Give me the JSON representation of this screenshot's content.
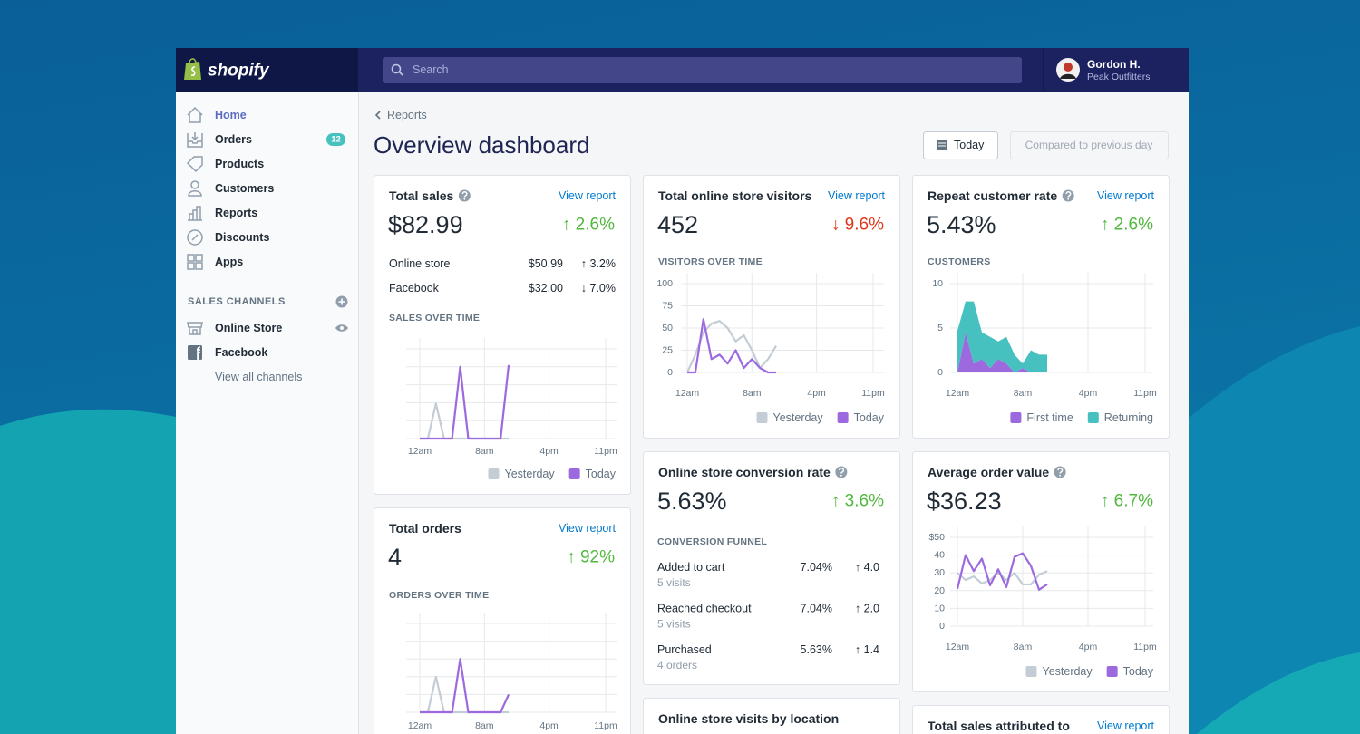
{
  "app": {
    "brand": "shopify",
    "search": "Search",
    "user": {
      "name": "Gordon H.",
      "store": "Peak Outfitters"
    }
  },
  "nav": {
    "items": [
      {
        "label": "Home"
      },
      {
        "label": "Orders",
        "badge": 12
      },
      {
        "label": "Products"
      },
      {
        "label": "Customers"
      },
      {
        "label": "Reports"
      },
      {
        "label": "Discounts"
      },
      {
        "label": "Apps"
      }
    ],
    "channels_heading": "SALES CHANNELS",
    "channels": [
      "Online Store",
      "Facebook"
    ],
    "channels_more": "View all channels"
  },
  "page": {
    "breadcrumb": "Reports",
    "title": "Overview dashboard",
    "date_button": "Today",
    "compare_button": "Compared to previous day"
  },
  "cards": {
    "total_sales": {
      "title": "Total sales",
      "link": "View report",
      "value": "$82.99",
      "change": "↑ 2.6%",
      "rows": [
        {
          "label": "Online store",
          "value": "$50.99",
          "change": "↑ 3.2%"
        },
        {
          "label": "Facebook",
          "value": "$32.00",
          "change": "↓ 7.0%"
        }
      ],
      "chart": {
        "type": "line",
        "heading": "SALES OVER TIME",
        "x": [
          0,
          1,
          2,
          3,
          4,
          5,
          6,
          7,
          8,
          9,
          10,
          11
        ],
        "xlim": [
          0,
          23
        ],
        "xticks": [
          {
            "value": 0,
            "label": "12am"
          },
          {
            "value": 8,
            "label": "8am"
          },
          {
            "value": 16,
            "label": "4pm"
          },
          {
            "value": 23,
            "label": "11pm"
          }
        ],
        "ylim": [
          0,
          100
        ],
        "grid": true,
        "series": [
          {
            "name": "Yesterday",
            "color": "#c4cdd5",
            "values": [
              0,
              0,
              39,
              0,
              0,
              0,
              0,
              0,
              0,
              0,
              0,
              0
            ]
          },
          {
            "name": "Today",
            "color": "#9c6ade",
            "values": [
              0,
              0,
              0,
              0,
              0,
              80,
              0,
              0,
              0,
              0,
              0,
              82
            ]
          }
        ]
      }
    },
    "visitors": {
      "title": "Total online store visitors",
      "link": "View report",
      "value": "452",
      "change": "↓ 9.6%",
      "chart": {
        "type": "line",
        "heading": "VISITORS OVER TIME",
        "x": [
          0,
          1,
          2,
          3,
          4,
          5,
          6,
          7,
          8,
          9,
          10,
          11
        ],
        "xlim": [
          0,
          23
        ],
        "xticks": [
          {
            "value": 0,
            "label": "12am"
          },
          {
            "value": 8,
            "label": "8am"
          },
          {
            "value": 16,
            "label": "4pm"
          },
          {
            "value": 23,
            "label": "11pm"
          }
        ],
        "ylim": [
          0,
          100
        ],
        "yticks": [
          0,
          25,
          50,
          75,
          100
        ],
        "grid": true,
        "series": [
          {
            "name": "Yesterday",
            "color": "#c4cdd5",
            "values": [
              0,
              20,
              45,
              55,
              58,
              50,
              35,
              42,
              25,
              5,
              15,
              30
            ]
          },
          {
            "name": "Today",
            "color": "#9c6ade",
            "values": [
              0,
              0,
              60,
              15,
              20,
              10,
              25,
              5,
              15,
              5,
              0,
              0
            ]
          }
        ]
      }
    },
    "repeat": {
      "title": "Repeat customer rate",
      "link": "View report",
      "value": "5.43%",
      "change": "↑ 2.6%",
      "chart": {
        "type": "area",
        "stacked": true,
        "heading": "CUSTOMERS",
        "x": [
          0,
          1,
          2,
          3,
          4,
          5,
          6,
          7,
          8,
          9,
          10,
          11
        ],
        "xlim": [
          0,
          23
        ],
        "xticks": [
          {
            "value": 0,
            "label": "12am"
          },
          {
            "value": 8,
            "label": "8am"
          },
          {
            "value": 16,
            "label": "4pm"
          },
          {
            "value": 23,
            "label": "11pm"
          }
        ],
        "ylim": [
          0,
          10
        ],
        "yticks": [
          0,
          5,
          10
        ],
        "grid": true,
        "series": [
          {
            "name": "First time",
            "color": "#9c6ade",
            "values": [
              0,
              4.5,
              1,
              1.5,
              0.5,
              1.5,
              1,
              0,
              0.5,
              0,
              0,
              0
            ]
          },
          {
            "name": "Returning",
            "color": "#47c1bf",
            "values": [
              4.7,
              3.5,
              7,
              3,
              3.5,
              2,
              3,
              2,
              0.5,
              2.5,
              2,
              2
            ]
          }
        ]
      }
    },
    "conversion": {
      "title": "Online store conversion rate",
      "value": "5.63%",
      "change": "↑ 3.6%",
      "funnel_heading": "CONVERSION FUNNEL",
      "rows": [
        {
          "label": "Added to cart",
          "sub": "5 visits",
          "rate": "7.04%",
          "change": "↑ 4.0"
        },
        {
          "label": "Reached checkout",
          "sub": "5 visits",
          "rate": "7.04%",
          "change": "↑ 2.0"
        },
        {
          "label": "Purchased",
          "sub": "4 orders",
          "rate": "5.63%",
          "change": "↑ 1.4"
        }
      ]
    },
    "aov": {
      "title": "Average order value",
      "value": "$36.23",
      "change": "↑ 6.7%",
      "chart": {
        "type": "line",
        "x": [
          0,
          1,
          2,
          3,
          4,
          5,
          6,
          7,
          8,
          9,
          10,
          11
        ],
        "xlim": [
          0,
          23
        ],
        "xticks": [
          {
            "value": 0,
            "label": "12am"
          },
          {
            "value": 8,
            "label": "8am"
          },
          {
            "value": 16,
            "label": "4pm"
          },
          {
            "value": 23,
            "label": "11pm"
          }
        ],
        "ylim": [
          0,
          50
        ],
        "yticks": [
          0,
          10,
          20,
          30,
          40,
          {
            "value": 50,
            "label": "$50"
          }
        ],
        "grid": true,
        "series": [
          {
            "name": "Yesterday",
            "color": "#c4cdd5",
            "values": [
              30,
              26,
              28,
              24,
              26,
              30,
              26,
              30,
              23.5,
              23.5,
              29,
              31
            ]
          },
          {
            "name": "Today",
            "color": "#9c6ade",
            "values": [
              21,
              40,
              31,
              38,
              23,
              32,
              22,
              39,
              41,
              34,
              20.5,
              23.5
            ]
          }
        ]
      }
    },
    "orders": {
      "title": "Total orders",
      "link": "View report",
      "value": "4",
      "change": "↑ 92%",
      "chart": {
        "type": "line",
        "heading": "ORDERS OVER TIME",
        "x": [
          0,
          1,
          2,
          3,
          4,
          5,
          6,
          7,
          8,
          9,
          10,
          11
        ],
        "xlim": [
          0,
          23
        ],
        "xticks": [
          {
            "value": 0,
            "label": "12am"
          },
          {
            "value": 8,
            "label": "8am"
          },
          {
            "value": 16,
            "label": "4pm"
          },
          {
            "value": 23,
            "label": "11pm"
          }
        ],
        "ylim": [
          0,
          100
        ],
        "grid": true,
        "series": [
          {
            "color": "#c4cdd5",
            "values": [
              0,
              0,
              40,
              0,
              0,
              0,
              0,
              0,
              0,
              0,
              0,
              0
            ]
          },
          {
            "color": "#9c6ade",
            "values": [
              0,
              0,
              0,
              0,
              0,
              60,
              0,
              0,
              0,
              0,
              0,
              20
            ]
          }
        ]
      }
    },
    "visits_location": {
      "title": "Online store visits by location"
    },
    "attributed": {
      "title": "Total sales attributed to",
      "link": "View report"
    }
  }
}
